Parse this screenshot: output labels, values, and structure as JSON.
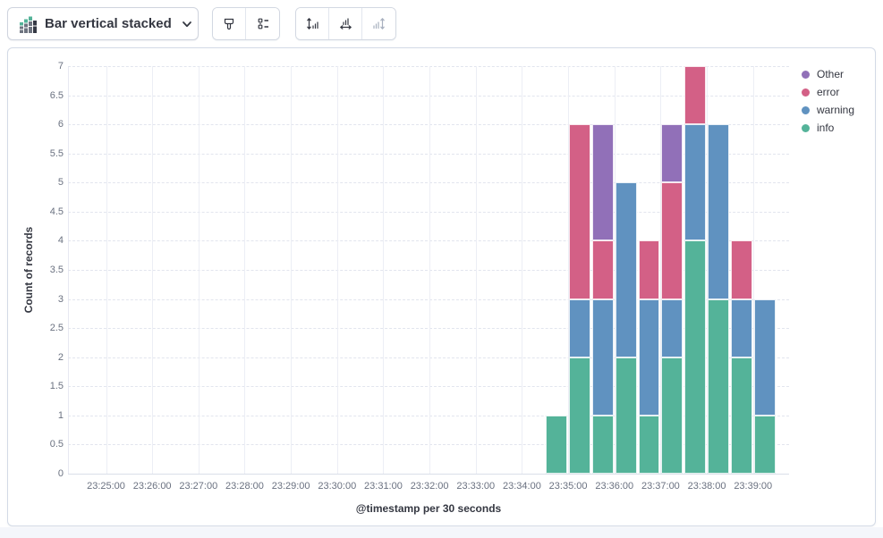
{
  "toolbar": {
    "chart_type_label": "Bar vertical stacked",
    "icons": [
      "bar-vertical-stacked-icon",
      "chevron-down-icon",
      "visual-options-brush-icon",
      "legend-settings-icon",
      "left-axis-icon",
      "bottom-axis-icon",
      "right-axis-icon"
    ],
    "right_axis_disabled": true
  },
  "chart_data": {
    "type": "bar",
    "stacked": true,
    "orientation": "vertical",
    "xlabel": "@timestamp per 30 seconds",
    "ylabel": "Count of records",
    "ylim": [
      0,
      7
    ],
    "y_tick_step": 0.5,
    "grid": true,
    "x_tick_labels": [
      "23:25:00",
      "23:26:00",
      "23:27:00",
      "23:28:00",
      "23:29:00",
      "23:30:00",
      "23:31:00",
      "23:32:00",
      "23:33:00",
      "23:34:00",
      "23:35:00",
      "23:36:00",
      "23:37:00",
      "23:38:00",
      "23:39:00"
    ],
    "categories": [
      "23:34:30",
      "23:35:00",
      "23:35:30",
      "23:36:00",
      "23:36:30",
      "23:37:00",
      "23:37:30",
      "23:38:00",
      "23:38:30",
      "23:39:00"
    ],
    "series": [
      {
        "name": "info",
        "color": "#54B399",
        "values": [
          1,
          2,
          1,
          2,
          1,
          2,
          4,
          3,
          2,
          1
        ]
      },
      {
        "name": "warning",
        "color": "#6092C0",
        "values": [
          0,
          1,
          2,
          3,
          2,
          1,
          2,
          3,
          1,
          2
        ]
      },
      {
        "name": "error",
        "color": "#D36086",
        "values": [
          0,
          3,
          1,
          0,
          1,
          2,
          1,
          0,
          1,
          0
        ]
      },
      {
        "name": "Other",
        "color": "#9170B8",
        "values": [
          0,
          0,
          2,
          0,
          0,
          1,
          0,
          0,
          0,
          0
        ]
      }
    ],
    "legend_position": "right",
    "legend": [
      {
        "label": "Other",
        "color": "#9170B8"
      },
      {
        "label": "error",
        "color": "#D36086"
      },
      {
        "label": "warning",
        "color": "#6092C0"
      },
      {
        "label": "info",
        "color": "#54B399"
      }
    ]
  }
}
